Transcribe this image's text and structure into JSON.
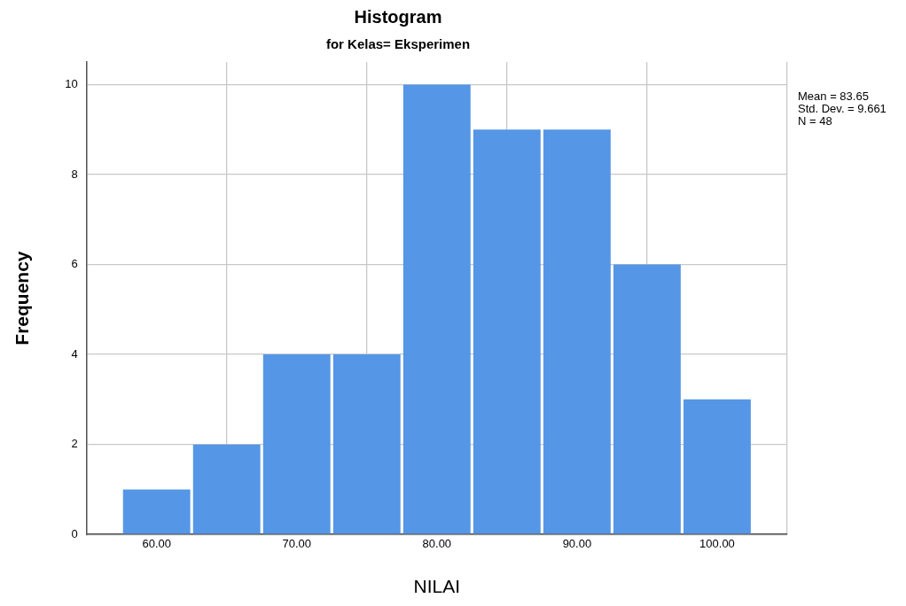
{
  "chart_data": {
    "type": "histogram",
    "title": "Histogram",
    "subtitle": "for Kelas= Eksperimen",
    "xlabel": "NILAI",
    "ylabel": "Frequency",
    "bins": [
      57.5,
      62.5,
      67.5,
      72.5,
      77.5,
      82.5,
      87.5,
      92.5,
      97.5,
      102.5
    ],
    "values": [
      1,
      2,
      4,
      4,
      10,
      9,
      9,
      6,
      3
    ],
    "color": "#5596e6",
    "xlim": [
      55,
      105
    ],
    "xticks": [
      {
        "value": 60,
        "label": "60.00"
      },
      {
        "value": 70,
        "label": "70.00"
      },
      {
        "value": 80,
        "label": "80.00"
      },
      {
        "value": 90,
        "label": "90.00"
      },
      {
        "value": 100,
        "label": "100.00"
      }
    ],
    "ylim": [
      0,
      10.5
    ],
    "yticks": [
      0,
      2,
      4,
      6,
      8,
      10
    ],
    "grid": true,
    "legend": false,
    "annotations": [
      "Mean = 83.65",
      "Std. Dev. = 9.661",
      "N = 48"
    ]
  }
}
